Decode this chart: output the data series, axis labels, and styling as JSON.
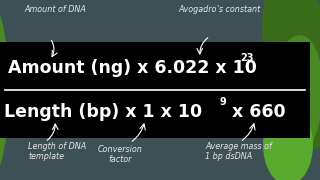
{
  "bg_color": "#3d5055",
  "box_color": "#000000",
  "text_color": "#ffffff",
  "label_color": "#e8e8e8",
  "green_dark": "#3a6b1a",
  "green_mid": "#4a8a25",
  "green_light": "#5aaa30",
  "label_top_left": "Amount of DNA",
  "label_top_right": "Avogadro’s constant",
  "label_bot_left": "Length of DNA\ntemplate",
  "label_bot_mid": "Conversion\nfactor",
  "label_bot_right": "Average mass of\n1 bp dsDNA",
  "figsize": [
    3.2,
    1.8
  ],
  "dpi": 100
}
